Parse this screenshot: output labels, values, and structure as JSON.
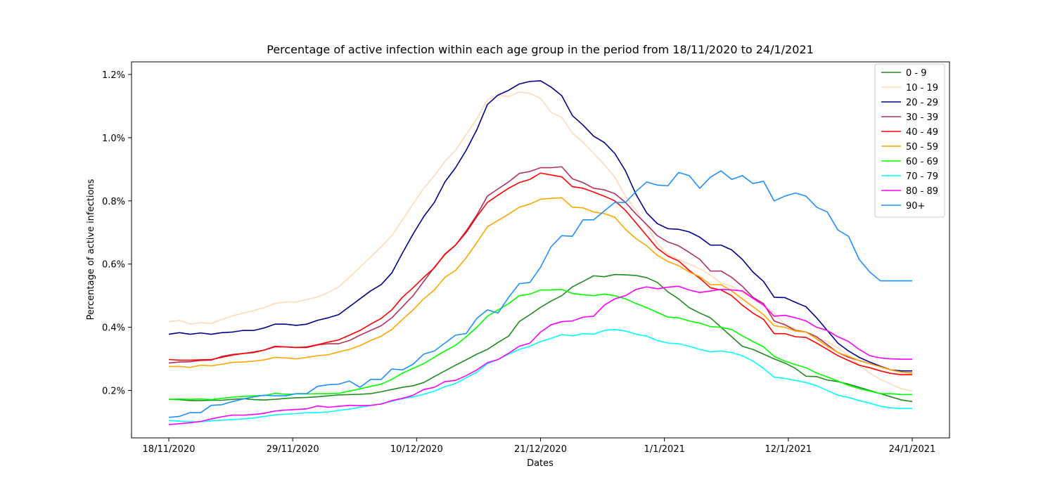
{
  "chart_data": {
    "type": "line",
    "title": "Percentage of active infection within each age group in the period from 18/11/2020 to 24/1/2021",
    "xlabel": "Dates",
    "ylabel": "Percentage of active infections",
    "x_start_date": "18/11/2020",
    "x_end_date": "24/1/2021",
    "x_ticks": [
      "18/11/2020",
      "29/11/2020",
      "10/12/2020",
      "21/12/2020",
      "1/1/2021",
      "12/1/2021",
      "24/1/2021"
    ],
    "y_ticks": [
      "0.2%",
      "0.4%",
      "0.6%",
      "0.8%",
      "1.0%",
      "1.2%"
    ],
    "ylim": [
      0.0005,
      0.0124
    ],
    "grid": false,
    "legend_position": "top-right",
    "series": [
      {
        "name": "0 - 9",
        "color": "#228b22",
        "values": [
          0.00172,
          0.00171,
          0.00168,
          0.00168,
          0.00169,
          0.00169,
          0.00172,
          0.00174,
          0.00171,
          0.0017,
          0.00172,
          0.00175,
          0.00177,
          0.00178,
          0.0018,
          0.00183,
          0.00186,
          0.00187,
          0.00188,
          0.0019,
          0.00196,
          0.00203,
          0.0021,
          0.00215,
          0.00225,
          0.00244,
          0.00262,
          0.0028,
          0.00297,
          0.00315,
          0.0033,
          0.00352,
          0.00372,
          0.00418,
          0.0044,
          0.00463,
          0.00483,
          0.005,
          0.00528,
          0.00545,
          0.00563,
          0.0056,
          0.00567,
          0.00566,
          0.00564,
          0.00557,
          0.00542,
          0.00512,
          0.0049,
          0.00462,
          0.00445,
          0.0043,
          0.004,
          0.0037,
          0.0034,
          0.0033,
          0.00315,
          0.003,
          0.00287,
          0.0027,
          0.00245,
          0.00244,
          0.00233,
          0.00228,
          0.0022,
          0.0021,
          0.002,
          0.0019,
          0.0018,
          0.0017,
          0.00165
        ]
      },
      {
        "name": "10 - 19",
        "color": "#ffdab9",
        "values": [
          0.00418,
          0.00422,
          0.0041,
          0.00415,
          0.00412,
          0.00425,
          0.00436,
          0.00445,
          0.00453,
          0.00462,
          0.00475,
          0.0048,
          0.0048,
          0.00488,
          0.00496,
          0.0051,
          0.00528,
          0.00558,
          0.0059,
          0.00622,
          0.00655,
          0.0069,
          0.0074,
          0.0079,
          0.0084,
          0.0088,
          0.00925,
          0.0096,
          0.0101,
          0.0106,
          0.0112,
          0.01135,
          0.0113,
          0.01145,
          0.0114,
          0.01125,
          0.0108,
          0.01065,
          0.01015,
          0.00985,
          0.0095,
          0.00915,
          0.00875,
          0.00815,
          0.0077,
          0.0072,
          0.00665,
          0.0063,
          0.00615,
          0.006,
          0.00585,
          0.00565,
          0.0054,
          0.0053,
          0.0051,
          0.0049,
          0.0047,
          0.00445,
          0.0041,
          0.00395,
          0.00385,
          0.00365,
          0.00355,
          0.00335,
          0.0031,
          0.0028,
          0.00255,
          0.00235,
          0.0022,
          0.00205,
          0.00198
        ]
      },
      {
        "name": "20 - 29",
        "color": "#00008b",
        "values": [
          0.00378,
          0.00383,
          0.00378,
          0.00382,
          0.00378,
          0.00383,
          0.00385,
          0.0039,
          0.0039,
          0.00398,
          0.0041,
          0.0041,
          0.00406,
          0.0041,
          0.00422,
          0.0043,
          0.0044,
          0.00465,
          0.0049,
          0.00515,
          0.00535,
          0.00572,
          0.00635,
          0.00695,
          0.0075,
          0.00795,
          0.0086,
          0.00905,
          0.0096,
          0.01025,
          0.01105,
          0.01135,
          0.0115,
          0.0117,
          0.01178,
          0.0118,
          0.0116,
          0.01133,
          0.0107,
          0.0104,
          0.01005,
          0.00985,
          0.0095,
          0.00895,
          0.0082,
          0.00762,
          0.00728,
          0.00712,
          0.0071,
          0.00702,
          0.00685,
          0.0066,
          0.0066,
          0.00645,
          0.00615,
          0.00575,
          0.00545,
          0.00495,
          0.00494,
          0.00479,
          0.00465,
          0.0043,
          0.0039,
          0.0035,
          0.00325,
          0.00305,
          0.0029,
          0.00277,
          0.00265,
          0.00262,
          0.00262
        ]
      },
      {
        "name": "30 - 39",
        "color": "#b03060",
        "values": [
          0.00287,
          0.0029,
          0.00291,
          0.00295,
          0.00296,
          0.00308,
          0.00314,
          0.00317,
          0.00322,
          0.00328,
          0.00338,
          0.00338,
          0.00336,
          0.00336,
          0.00344,
          0.00348,
          0.00348,
          0.00358,
          0.00375,
          0.0039,
          0.00405,
          0.0043,
          0.00465,
          0.005,
          0.00545,
          0.0059,
          0.0063,
          0.0066,
          0.00705,
          0.00755,
          0.00815,
          0.00838,
          0.0086,
          0.00887,
          0.00893,
          0.00905,
          0.00905,
          0.00908,
          0.0087,
          0.00858,
          0.0084,
          0.00835,
          0.00823,
          0.00795,
          0.00758,
          0.00725,
          0.0069,
          0.0067,
          0.00658,
          0.00637,
          0.00615,
          0.00578,
          0.00578,
          0.00558,
          0.0053,
          0.00495,
          0.00475,
          0.0042,
          0.00408,
          0.0039,
          0.00385,
          0.0037,
          0.00345,
          0.0032,
          0.00305,
          0.00295,
          0.00285,
          0.00275,
          0.00265,
          0.00258,
          0.00256
        ]
      },
      {
        "name": "40 - 49",
        "color": "#ff0000",
        "values": [
          0.00298,
          0.00296,
          0.00296,
          0.00297,
          0.00298,
          0.00305,
          0.00312,
          0.00317,
          0.0032,
          0.00328,
          0.0034,
          0.00338,
          0.00336,
          0.00338,
          0.00345,
          0.00353,
          0.0036,
          0.00375,
          0.0039,
          0.0041,
          0.00428,
          0.00455,
          0.00495,
          0.00525,
          0.00558,
          0.00588,
          0.00632,
          0.0066,
          0.007,
          0.0075,
          0.00795,
          0.00818,
          0.0084,
          0.00858,
          0.00868,
          0.00888,
          0.00882,
          0.00876,
          0.00845,
          0.0084,
          0.00828,
          0.00815,
          0.008,
          0.0077,
          0.0073,
          0.0069,
          0.0065,
          0.00625,
          0.0061,
          0.0058,
          0.00555,
          0.00525,
          0.00518,
          0.005,
          0.0047,
          0.00445,
          0.00425,
          0.0038,
          0.0038,
          0.0037,
          0.00368,
          0.0035,
          0.0033,
          0.0031,
          0.00295,
          0.0028,
          0.00272,
          0.00262,
          0.00254,
          0.0025,
          0.0025
        ]
      },
      {
        "name": "50 - 59",
        "color": "#ffa500",
        "values": [
          0.00276,
          0.00276,
          0.00273,
          0.0028,
          0.00278,
          0.00283,
          0.00289,
          0.0029,
          0.00293,
          0.00297,
          0.00305,
          0.00303,
          0.003,
          0.00305,
          0.0031,
          0.00313,
          0.00322,
          0.0033,
          0.00342,
          0.00358,
          0.00372,
          0.00393,
          0.00425,
          0.00455,
          0.0049,
          0.00518,
          0.00558,
          0.0058,
          0.0062,
          0.00668,
          0.00718,
          0.00738,
          0.00758,
          0.0078,
          0.0079,
          0.00805,
          0.00808,
          0.0081,
          0.0078,
          0.00778,
          0.00765,
          0.0076,
          0.00748,
          0.0071,
          0.0068,
          0.00658,
          0.00628,
          0.00608,
          0.00595,
          0.00575,
          0.0056,
          0.00535,
          0.00535,
          0.00515,
          0.0049,
          0.00465,
          0.0044,
          0.00405,
          0.004,
          0.00388,
          0.00385,
          0.00363,
          0.0034,
          0.0032,
          0.00308,
          0.00295,
          0.00285,
          0.00275,
          0.00265,
          0.00258,
          0.00255
        ]
      },
      {
        "name": "60 - 69",
        "color": "#00ff00",
        "values": [
          0.00172,
          0.00173,
          0.00172,
          0.00173,
          0.00171,
          0.00175,
          0.00179,
          0.00181,
          0.00183,
          0.00184,
          0.00191,
          0.00188,
          0.00189,
          0.00189,
          0.0019,
          0.0019,
          0.00191,
          0.00198,
          0.00205,
          0.00213,
          0.0022,
          0.00235,
          0.00255,
          0.0027,
          0.00285,
          0.00305,
          0.00325,
          0.00343,
          0.0037,
          0.004,
          0.00435,
          0.00455,
          0.00475,
          0.005,
          0.00505,
          0.00518,
          0.00518,
          0.0052,
          0.00507,
          0.00503,
          0.005,
          0.00505,
          0.005,
          0.0049,
          0.00475,
          0.00462,
          0.00447,
          0.00432,
          0.0043,
          0.0042,
          0.00413,
          0.00402,
          0.004,
          0.00393,
          0.00373,
          0.00355,
          0.00338,
          0.00308,
          0.00293,
          0.00282,
          0.00272,
          0.00255,
          0.00243,
          0.0023,
          0.00216,
          0.00206,
          0.00198,
          0.0019,
          0.0019,
          0.00187,
          0.00187
        ]
      },
      {
        "name": "70 - 79",
        "color": "#00ffff",
        "values": [
          0.00105,
          0.00103,
          0.00101,
          0.00101,
          0.00104,
          0.00106,
          0.00108,
          0.0011,
          0.00113,
          0.00118,
          0.00123,
          0.00125,
          0.00127,
          0.0013,
          0.0013,
          0.00132,
          0.00137,
          0.00141,
          0.00147,
          0.00152,
          0.00158,
          0.00166,
          0.00174,
          0.0018,
          0.00188,
          0.00198,
          0.00212,
          0.00222,
          0.0024,
          0.00258,
          0.00285,
          0.00298,
          0.00315,
          0.0033,
          0.0034,
          0.00355,
          0.00365,
          0.00377,
          0.00373,
          0.0038,
          0.00378,
          0.0039,
          0.00393,
          0.00388,
          0.00378,
          0.00372,
          0.00358,
          0.0035,
          0.00348,
          0.0034,
          0.0033,
          0.00322,
          0.00325,
          0.0032,
          0.0031,
          0.00293,
          0.0027,
          0.00242,
          0.00238,
          0.00232,
          0.00225,
          0.00215,
          0.002,
          0.00185,
          0.00178,
          0.00168,
          0.0016,
          0.0015,
          0.00145,
          0.00143,
          0.00143
        ]
      },
      {
        "name": "80 - 89",
        "color": "#ff00ff",
        "values": [
          0.00092,
          0.00095,
          0.00098,
          0.00102,
          0.0011,
          0.00117,
          0.00122,
          0.00122,
          0.00124,
          0.00128,
          0.00135,
          0.00138,
          0.0014,
          0.00142,
          0.00151,
          0.00147,
          0.0015,
          0.00153,
          0.00152,
          0.00153,
          0.00157,
          0.00168,
          0.00175,
          0.00185,
          0.00203,
          0.0021,
          0.00228,
          0.00232,
          0.00247,
          0.00265,
          0.00288,
          0.00298,
          0.00318,
          0.0034,
          0.0035,
          0.00385,
          0.00408,
          0.00418,
          0.0042,
          0.00432,
          0.00435,
          0.0047,
          0.0049,
          0.005,
          0.0052,
          0.00528,
          0.00522,
          0.00527,
          0.0053,
          0.00518,
          0.0051,
          0.00515,
          0.0052,
          0.00518,
          0.00515,
          0.00492,
          0.0047,
          0.00435,
          0.00438,
          0.0043,
          0.0042,
          0.004,
          0.0039,
          0.0037,
          0.00355,
          0.0033,
          0.0031,
          0.00303,
          0.003,
          0.00299,
          0.00299
        ]
      },
      {
        "name": "90+",
        "color": "#1e90ff",
        "values": [
          0.00115,
          0.00118,
          0.0013,
          0.0013,
          0.00153,
          0.00155,
          0.00165,
          0.00173,
          0.0018,
          0.00185,
          0.00183,
          0.00183,
          0.0019,
          0.0019,
          0.00213,
          0.00218,
          0.0022,
          0.0023,
          0.0021,
          0.00235,
          0.00235,
          0.00268,
          0.00265,
          0.00283,
          0.00315,
          0.00325,
          0.0035,
          0.00375,
          0.0038,
          0.00428,
          0.00455,
          0.00445,
          0.00495,
          0.00538,
          0.00542,
          0.0059,
          0.00655,
          0.0069,
          0.00688,
          0.0074,
          0.0074,
          0.00768,
          0.00795,
          0.00795,
          0.0083,
          0.0086,
          0.0085,
          0.00848,
          0.0089,
          0.0088,
          0.0084,
          0.00875,
          0.00895,
          0.00868,
          0.0088,
          0.00855,
          0.00862,
          0.008,
          0.00815,
          0.00825,
          0.00815,
          0.0078,
          0.00765,
          0.00708,
          0.00688,
          0.00615,
          0.00575,
          0.00547,
          0.00547,
          0.00547,
          0.00547
        ]
      }
    ]
  }
}
